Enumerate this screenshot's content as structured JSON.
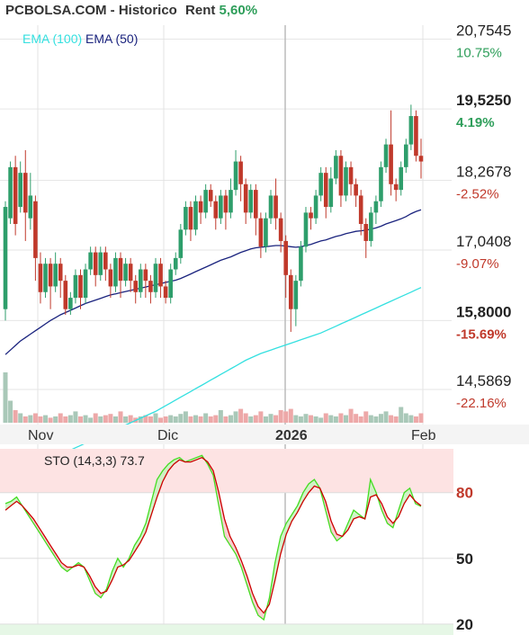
{
  "header": {
    "title": "PCBOLSA.COM - Historico",
    "rent_label": "Rent",
    "rent_value": "5,60%"
  },
  "colors": {
    "up": "#2e9e6b",
    "down": "#c0392b",
    "ema100": "#34e0e0",
    "ema50": "#1a237e",
    "vol_up": "#a9c8b8",
    "vol_down": "#eda8a8",
    "sto_k": "#44dd22",
    "sto_d": "#cc0000",
    "pct_pos": "#2e9e5a",
    "pct_neg": "#c0392b"
  },
  "chart_data": [
    {
      "type": "candlestick",
      "title": "PCBOLSA.COM - Historico",
      "legend": [
        "EMA (100)",
        "EMA (50)"
      ],
      "x_ticks": [
        "Nov",
        "Dic",
        "2026",
        "Feb"
      ],
      "y_ticks": [
        {
          "price": "20,7545",
          "pct": "10.75%"
        },
        {
          "price": "19,5250",
          "pct": "4.19%"
        },
        {
          "price": "18,2678",
          "pct": "-2.52%"
        },
        {
          "price": "17,0408",
          "pct": "-9.07%"
        },
        {
          "price": "15,8000",
          "pct": "-15.69%"
        },
        {
          "price": "14,5869",
          "pct": "-22.16%"
        }
      ],
      "ylim": [
        14.0,
        21.0
      ],
      "candles": [
        [
          16.0,
          17.8,
          15.8,
          17.9
        ],
        [
          17.6,
          18.5,
          17.5,
          18.6
        ],
        [
          18.5,
          17.5,
          17.3,
          18.7
        ],
        [
          17.8,
          18.4,
          17.7,
          18.6
        ],
        [
          18.4,
          17.7,
          17.2,
          18.8
        ],
        [
          17.6,
          18.0,
          17.4,
          18.4
        ],
        [
          17.9,
          16.9,
          16.5,
          18.0
        ],
        [
          16.8,
          16.3,
          16.1,
          17.0
        ],
        [
          16.3,
          16.8,
          16.2,
          16.9
        ],
        [
          16.8,
          16.4,
          16.0,
          16.9
        ],
        [
          16.4,
          16.8,
          16.3,
          17.0
        ],
        [
          16.8,
          16.5,
          16.2,
          16.9
        ],
        [
          16.5,
          16.0,
          15.9,
          16.6
        ],
        [
          16.0,
          16.2,
          15.9,
          16.3
        ],
        [
          16.2,
          16.6,
          16.1,
          16.7
        ],
        [
          16.6,
          16.2,
          16.0,
          16.7
        ],
        [
          16.2,
          16.7,
          16.1,
          16.8
        ],
        [
          16.7,
          17.0,
          16.6,
          17.1
        ],
        [
          17.0,
          16.6,
          16.4,
          17.1
        ],
        [
          16.6,
          17.0,
          16.5,
          17.1
        ],
        [
          17.0,
          16.7,
          16.5,
          17.1
        ],
        [
          16.7,
          16.4,
          16.2,
          16.8
        ],
        [
          16.4,
          16.9,
          16.3,
          17.0
        ],
        [
          16.9,
          16.5,
          16.2,
          17.0
        ],
        [
          16.5,
          16.8,
          16.4,
          16.9
        ],
        [
          16.8,
          16.5,
          16.3,
          16.9
        ],
        [
          16.5,
          16.3,
          16.1,
          16.6
        ],
        [
          16.3,
          16.7,
          16.2,
          16.8
        ],
        [
          16.7,
          16.5,
          16.2,
          16.8
        ],
        [
          16.5,
          16.3,
          16.1,
          16.6
        ],
        [
          16.3,
          16.8,
          16.2,
          16.9
        ],
        [
          16.8,
          16.4,
          16.2,
          16.9
        ],
        [
          16.4,
          16.2,
          16.1,
          16.5
        ],
        [
          16.2,
          16.7,
          16.1,
          16.8
        ],
        [
          16.7,
          16.9,
          16.6,
          17.0
        ],
        [
          16.9,
          17.4,
          16.8,
          17.5
        ],
        [
          17.4,
          17.8,
          17.3,
          17.9
        ],
        [
          17.8,
          17.4,
          17.2,
          17.9
        ],
        [
          17.4,
          17.9,
          17.3,
          18.0
        ],
        [
          17.9,
          17.7,
          17.5,
          18.0
        ],
        [
          17.7,
          18.1,
          17.6,
          18.2
        ],
        [
          18.1,
          17.9,
          17.8,
          18.2
        ],
        [
          17.9,
          17.6,
          17.4,
          18.0
        ],
        [
          17.6,
          18.0,
          17.5,
          18.1
        ],
        [
          18.0,
          17.7,
          17.4,
          18.1
        ],
        [
          17.7,
          18.1,
          17.6,
          18.3
        ],
        [
          18.1,
          18.6,
          18.0,
          18.8
        ],
        [
          18.6,
          18.2,
          17.9,
          18.7
        ],
        [
          18.2,
          17.7,
          17.5,
          18.3
        ],
        [
          17.7,
          18.1,
          17.6,
          18.2
        ],
        [
          18.1,
          17.6,
          17.3,
          18.2
        ],
        [
          17.6,
          17.1,
          16.9,
          17.7
        ],
        [
          17.1,
          17.6,
          17.0,
          17.7
        ],
        [
          17.6,
          18.0,
          17.5,
          18.1
        ],
        [
          18.0,
          17.6,
          17.4,
          18.3
        ],
        [
          17.6,
          17.2,
          17.0,
          17.7
        ],
        [
          17.2,
          16.6,
          16.2,
          17.3
        ],
        [
          16.6,
          16.0,
          15.6,
          16.7
        ],
        [
          16.0,
          16.5,
          15.7,
          16.6
        ],
        [
          16.5,
          17.1,
          16.4,
          17.2
        ],
        [
          17.1,
          17.7,
          17.0,
          17.8
        ],
        [
          17.7,
          17.6,
          17.4,
          17.8
        ],
        [
          17.6,
          18.0,
          17.5,
          18.1
        ],
        [
          18.0,
          18.4,
          17.9,
          18.5
        ],
        [
          18.4,
          17.8,
          17.6,
          18.5
        ],
        [
          17.8,
          18.3,
          17.7,
          18.5
        ],
        [
          18.3,
          18.7,
          18.2,
          18.8
        ],
        [
          18.7,
          18.0,
          17.8,
          18.8
        ],
        [
          18.0,
          18.5,
          17.9,
          18.6
        ],
        [
          18.5,
          18.2,
          18.0,
          18.6
        ],
        [
          18.2,
          18.0,
          17.8,
          18.3
        ],
        [
          18.0,
          17.5,
          17.3,
          18.1
        ],
        [
          17.5,
          17.2,
          16.9,
          17.6
        ],
        [
          17.2,
          17.7,
          17.1,
          17.8
        ],
        [
          17.7,
          17.9,
          17.5,
          18.0
        ],
        [
          17.9,
          18.5,
          17.8,
          18.6
        ],
        [
          18.5,
          18.9,
          18.4,
          19.0
        ],
        [
          18.9,
          18.2,
          18.0,
          19.5
        ],
        [
          18.2,
          18.1,
          17.9,
          18.3
        ],
        [
          18.1,
          18.5,
          18.0,
          18.6
        ],
        [
          18.5,
          18.9,
          18.4,
          19.0
        ],
        [
          18.9,
          19.4,
          18.8,
          19.6
        ],
        [
          19.4,
          18.7,
          18.6,
          19.5
        ],
        [
          18.7,
          18.6,
          18.3,
          19.0
        ]
      ],
      "ema50": [
        15.2,
        15.28,
        15.36,
        15.44,
        15.5,
        15.56,
        15.62,
        15.68,
        15.74,
        15.8,
        15.85,
        15.9,
        15.94,
        15.98,
        16.02,
        16.06,
        16.1,
        16.13,
        16.16,
        16.19,
        16.22,
        16.25,
        16.27,
        16.29,
        16.31,
        16.33,
        16.35,
        16.37,
        16.39,
        16.41,
        16.43,
        16.45,
        16.47,
        16.49,
        16.51,
        16.54,
        16.58,
        16.62,
        16.66,
        16.7,
        16.74,
        16.78,
        16.82,
        16.86,
        16.89,
        16.92,
        16.96,
        17.0,
        17.03,
        17.06,
        17.08,
        17.09,
        17.1,
        17.11,
        17.12,
        17.12,
        17.11,
        17.1,
        17.09,
        17.1,
        17.12,
        17.14,
        17.17,
        17.2,
        17.22,
        17.25,
        17.28,
        17.3,
        17.33,
        17.35,
        17.37,
        17.38,
        17.39,
        17.41,
        17.43,
        17.46,
        17.5,
        17.53,
        17.56,
        17.59,
        17.63,
        17.68,
        17.72,
        17.75
      ],
      "ema100": [
        13.0,
        13.04,
        13.08,
        13.12,
        13.16,
        13.2,
        13.24,
        13.28,
        13.32,
        13.36,
        13.4,
        13.44,
        13.48,
        13.52,
        13.56,
        13.6,
        13.64,
        13.68,
        13.72,
        13.76,
        13.8,
        13.84,
        13.88,
        13.92,
        13.96,
        14.0,
        14.04,
        14.08,
        14.12,
        14.16,
        14.2,
        14.25,
        14.3,
        14.35,
        14.4,
        14.45,
        14.5,
        14.55,
        14.6,
        14.65,
        14.7,
        14.75,
        14.8,
        14.85,
        14.9,
        14.95,
        15.0,
        15.05,
        15.1,
        15.14,
        15.18,
        15.22,
        15.25,
        15.28,
        15.31,
        15.34,
        15.37,
        15.4,
        15.43,
        15.46,
        15.49,
        15.52,
        15.55,
        15.58,
        15.62,
        15.66,
        15.7,
        15.74,
        15.78,
        15.82,
        15.86,
        15.9,
        15.94,
        15.98,
        16.02,
        16.06,
        16.1,
        16.14,
        16.18,
        16.22,
        16.26,
        16.3,
        16.34,
        16.38
      ],
      "volume": [
        0.8,
        0.35,
        0.2,
        0.15,
        0.1,
        0.12,
        0.15,
        0.1,
        0.12,
        0.08,
        0.1,
        0.15,
        0.1,
        0.12,
        0.18,
        0.1,
        0.12,
        0.08,
        0.15,
        0.1,
        0.12,
        0.14,
        0.1,
        0.18,
        0.1,
        0.12,
        0.08,
        0.1,
        0.12,
        0.1,
        0.15,
        0.08,
        0.1,
        0.12,
        0.1,
        0.14,
        0.18,
        0.1,
        0.12,
        0.1,
        0.15,
        0.1,
        0.12,
        0.2,
        0.1,
        0.12,
        0.18,
        0.22,
        0.15,
        0.1,
        0.12,
        0.18,
        0.1,
        0.14,
        0.12,
        0.2,
        0.18,
        0.22,
        0.12,
        0.1,
        0.14,
        0.12,
        0.1,
        0.08,
        0.15,
        0.12,
        0.1,
        0.15,
        0.12,
        0.22,
        0.14,
        0.1,
        0.18,
        0.12,
        0.1,
        0.14,
        0.18,
        0.12,
        0.1,
        0.25,
        0.15,
        0.12,
        0.1,
        0.15
      ]
    },
    {
      "type": "line",
      "title": "STO (14,3,3) 73.7",
      "y_ticks": [
        "80",
        "50",
        "20"
      ],
      "ylim": [
        15,
        100
      ],
      "series": [
        {
          "values": [
            75,
            76,
            78,
            74,
            70,
            66,
            62,
            58,
            54,
            50,
            46,
            44,
            46,
            48,
            46,
            40,
            34,
            32,
            36,
            44,
            50,
            46,
            50,
            56,
            60,
            66,
            76,
            86,
            90,
            93,
            95,
            96,
            94,
            95,
            96,
            97,
            93,
            88,
            74,
            60,
            56,
            52,
            46,
            38,
            30,
            24,
            22,
            32,
            48,
            60,
            66,
            70,
            74,
            80,
            84,
            86,
            82,
            72,
            62,
            58,
            60,
            66,
            72,
            70,
            68,
            86,
            80,
            72,
            66,
            64,
            72,
            80,
            82,
            75,
            73.7
          ]
        },
        {
          "values": [
            72,
            74,
            76,
            74,
            71,
            68,
            64,
            60,
            56,
            52,
            48,
            46,
            46,
            47,
            46,
            42,
            37,
            34,
            35,
            40,
            46,
            47,
            49,
            53,
            57,
            62,
            70,
            78,
            85,
            90,
            93,
            95,
            94,
            94,
            95,
            96,
            94,
            90,
            80,
            68,
            60,
            55,
            49,
            42,
            34,
            28,
            25,
            29,
            40,
            52,
            61,
            67,
            71,
            76,
            80,
            83,
            82,
            76,
            67,
            61,
            60,
            63,
            68,
            69,
            68,
            78,
            79,
            75,
            69,
            66,
            69,
            75,
            79,
            76,
            74
          ]
        }
      ]
    }
  ]
}
